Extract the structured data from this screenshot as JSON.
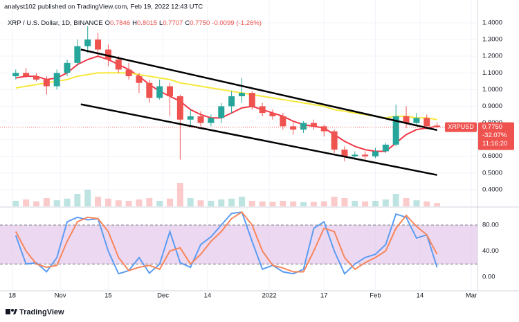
{
  "header": {
    "text": "analyst102 published on TradingView.com, Feb 19, 2022 12:43 UTC"
  },
  "footer": {
    "brand": "TradingView"
  },
  "chart_data": [
    {
      "type": "candlestick",
      "title": "XRP / U.S. Dollar, 1D, BINANCE",
      "ohlc_keys": [
        "O",
        "H",
        "L",
        "C"
      ],
      "ohlc": [
        0.7846,
        0.8015,
        0.7707,
        0.775
      ],
      "ohlc_value_labels": [
        "0.7846",
        "0.8015",
        "0.7707",
        "0.7750"
      ],
      "change": -0.0099,
      "change_pct": {
        "value": -1.26,
        "label": "(-1.26%)"
      },
      "up_color": "#26a69a",
      "down_color": "#ef5350",
      "x": [
        1,
        4,
        7,
        10,
        13,
        16,
        19,
        22,
        25,
        28,
        31,
        34,
        37,
        40,
        43,
        46,
        49,
        52,
        55,
        58,
        61,
        64,
        67,
        70,
        73,
        76,
        79,
        82,
        85,
        88,
        91,
        94,
        97,
        100,
        103,
        106,
        109,
        112,
        115,
        118,
        121,
        124
      ],
      "open": [
        1.08,
        1.1,
        1.08,
        1.06,
        1.02,
        1.1,
        1.16,
        1.26,
        1.3,
        1.24,
        1.18,
        1.12,
        1.08,
        1.04,
        0.95,
        1.02,
        0.96,
        0.82,
        0.84,
        0.8,
        0.83,
        0.9,
        0.96,
        0.98,
        0.9,
        0.86,
        0.84,
        0.78,
        0.76,
        0.8,
        0.78,
        0.75,
        0.64,
        0.6,
        0.61,
        0.6,
        0.63,
        0.67,
        0.84,
        0.8,
        0.83,
        0.7846
      ],
      "high": [
        1.12,
        1.13,
        1.1,
        1.08,
        1.12,
        1.18,
        1.3,
        1.38,
        1.34,
        1.27,
        1.2,
        1.16,
        1.1,
        1.06,
        1.06,
        1.04,
        0.97,
        0.88,
        0.87,
        0.85,
        0.92,
        0.99,
        1.07,
        0.99,
        0.92,
        0.88,
        0.86,
        0.8,
        0.81,
        0.82,
        0.79,
        0.76,
        0.66,
        0.63,
        0.63,
        0.65,
        0.68,
        0.91,
        0.9,
        0.86,
        0.85,
        0.8015
      ],
      "low": [
        1.06,
        1.07,
        1.05,
        0.97,
        1.0,
        1.08,
        1.14,
        1.22,
        1.2,
        1.14,
        1.1,
        1.06,
        0.98,
        0.92,
        0.94,
        0.84,
        0.58,
        0.78,
        0.78,
        0.78,
        0.8,
        0.86,
        0.92,
        0.88,
        0.84,
        0.82,
        0.76,
        0.73,
        0.74,
        0.76,
        0.72,
        0.62,
        0.57,
        0.58,
        0.58,
        0.59,
        0.62,
        0.66,
        0.77,
        0.78,
        0.76,
        0.7707
      ],
      "close": [
        1.1,
        1.08,
        1.06,
        1.02,
        1.1,
        1.16,
        1.26,
        1.3,
        1.24,
        1.18,
        1.12,
        1.08,
        1.04,
        0.95,
        1.02,
        0.96,
        0.82,
        0.84,
        0.8,
        0.83,
        0.9,
        0.96,
        0.98,
        0.9,
        0.86,
        0.84,
        0.78,
        0.76,
        0.8,
        0.78,
        0.75,
        0.64,
        0.6,
        0.61,
        0.6,
        0.63,
        0.67,
        0.84,
        0.8,
        0.83,
        0.78,
        0.775
      ],
      "volume": [
        20,
        25,
        18,
        30,
        22,
        28,
        45,
        60,
        35,
        28,
        22,
        20,
        25,
        30,
        20,
        28,
        85,
        30,
        22,
        20,
        25,
        28,
        35,
        20,
        18,
        16,
        20,
        18,
        15,
        16,
        18,
        35,
        30,
        20,
        18,
        20,
        25,
        45,
        30,
        22,
        18,
        12
      ],
      "ma": [
        {
          "color": "#f23645",
          "values": [
            1.07,
            1.08,
            1.08,
            1.06,
            1.07,
            1.1,
            1.15,
            1.18,
            1.2,
            1.18,
            1.15,
            1.12,
            1.08,
            1.03,
            0.99,
            0.96,
            0.93,
            0.88,
            0.85,
            0.83,
            0.83,
            0.86,
            0.89,
            0.9,
            0.88,
            0.86,
            0.84,
            0.81,
            0.79,
            0.78,
            0.77,
            0.73,
            0.69,
            0.66,
            0.64,
            0.63,
            0.63,
            0.68,
            0.73,
            0.76,
            0.77,
            0.78
          ]
        },
        {
          "color": "#f7e83a",
          "values": [
            1.01,
            1.02,
            1.03,
            1.04,
            1.05,
            1.06,
            1.08,
            1.09,
            1.1,
            1.1,
            1.1,
            1.1,
            1.09,
            1.08,
            1.07,
            1.06,
            1.04,
            1.03,
            1.02,
            1.01,
            1.0,
            0.99,
            0.98,
            0.97,
            0.96,
            0.95,
            0.94,
            0.93,
            0.92,
            0.91,
            0.9,
            0.88,
            0.87,
            0.86,
            0.85,
            0.84,
            0.83,
            0.84,
            0.84,
            0.83,
            0.83,
            0.82
          ]
        }
      ],
      "trendlines": [
        {
          "color": "#000000",
          "x": [
            20,
            124
          ],
          "values": [
            1.24,
            0.757
          ]
        },
        {
          "color": "#000000",
          "x": [
            20,
            124
          ],
          "values": [
            0.912,
            0.488
          ]
        }
      ],
      "last_price": {
        "symbol": "XRPUSD",
        "value": 0.775,
        "label": "0.7750",
        "change": {
          "value": -32.07,
          "label": "-32.07%"
        },
        "countdown": "11:16:20",
        "color": "#ef5350"
      },
      "xlim": [
        -3.6,
        135.8
      ],
      "xticks": [
        {
          "value": 0,
          "label": "18"
        },
        {
          "value": 14,
          "label": "Nov"
        },
        {
          "value": 28,
          "label": "15"
        },
        {
          "value": 44,
          "label": "Dec"
        },
        {
          "value": 57,
          "label": "14"
        },
        {
          "value": 75,
          "label": "2022"
        },
        {
          "value": 91,
          "label": "17"
        },
        {
          "value": 106,
          "label": "Feb"
        },
        {
          "value": 119,
          "label": "14"
        },
        {
          "value": 134,
          "label": "Mar"
        }
      ],
      "ylim": [
        0.3,
        1.537
      ],
      "yticks": [
        {
          "value": 1.4,
          "label": "1.4000"
        },
        {
          "value": 1.3,
          "label": "1.3000"
        },
        {
          "value": 1.2,
          "label": "1.2000"
        },
        {
          "value": 1.1,
          "label": "1.1000"
        },
        {
          "value": 1.0,
          "label": "1.0000"
        },
        {
          "value": 0.9,
          "label": "0.9000"
        },
        {
          "value": 0.8,
          "label": "0.8000"
        },
        {
          "value": 0.7,
          "label": "0.7000"
        },
        {
          "value": 0.6,
          "label": "0.6000"
        },
        {
          "value": 0.5,
          "label": "0.5000"
        },
        {
          "value": 0.4,
          "label": "0.4000"
        }
      ],
      "grid": true
    },
    {
      "type": "line",
      "series": [
        {
          "color": "#5b9cf2",
          "values": [
            64,
            20,
            22,
            8,
            30,
            85,
            92,
            88,
            90,
            40,
            5,
            10,
            30,
            6,
            20,
            70,
            22,
            15,
            50,
            62,
            80,
            98,
            100,
            55,
            12,
            18,
            8,
            5,
            12,
            75,
            85,
            40,
            5,
            20,
            30,
            35,
            50,
            97,
            92,
            60,
            65,
            15
          ]
        },
        {
          "color": "#f7855a",
          "values": [
            70,
            40,
            20,
            15,
            18,
            55,
            85,
            92,
            90,
            70,
            30,
            10,
            15,
            18,
            12,
            40,
            45,
            20,
            35,
            55,
            70,
            90,
            100,
            80,
            40,
            18,
            14,
            8,
            8,
            40,
            75,
            70,
            30,
            12,
            22,
            30,
            40,
            75,
            95,
            78,
            65,
            35
          ]
        }
      ],
      "bands": [
        20,
        80
      ],
      "band_color": "#e1bee7",
      "ylim": [
        -21.3,
        106.7
      ],
      "yticks": [
        {
          "value": 80,
          "label": "80.00"
        },
        {
          "value": 40,
          "label": "40.00"
        },
        {
          "value": 0,
          "label": "0.00"
        }
      ],
      "grid": true
    }
  ]
}
